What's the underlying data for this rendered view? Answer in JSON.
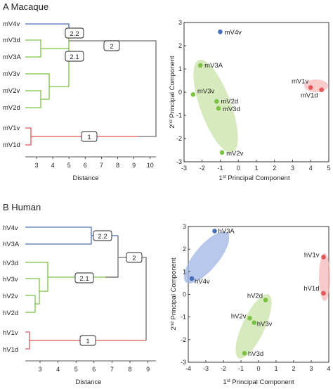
{
  "panel_a": {
    "title": "A Macaque",
    "dendrogram": {
      "leaves": [
        "mV4v",
        "mV3d",
        "mV3A",
        "mV3v",
        "mV2v",
        "mV2d",
        "mV1v",
        "mV1d"
      ],
      "node_labels": [
        "2.2",
        "2.1",
        "2",
        "1"
      ],
      "xlabel": "Distance",
      "xticks": [
        "3",
        "4",
        "5",
        "6",
        "7",
        "8",
        "9",
        "10"
      ],
      "colors": {
        "blue": "#4a6fba",
        "green": "#7cc242",
        "red": "#e0575b",
        "gray": "#6d6e71"
      }
    },
    "pca": {
      "xlabel_pre": "1",
      "xlabel_sup": "st",
      "xlabel_post": " Principal Component",
      "ylabel_pre": "2",
      "ylabel_sup": "nd",
      "ylabel_post": " Principal Component",
      "xticks": [
        "-3",
        "-2",
        "-1",
        "0",
        "1",
        "2",
        "3",
        "4",
        "5"
      ],
      "yticks": [
        "3",
        "2",
        "1",
        "0",
        "-1",
        "-2",
        "-3"
      ]
    }
  },
  "panel_b": {
    "title": "B Human",
    "dendrogram": {
      "leaves": [
        "hV4v",
        "hV3A",
        "hV3d",
        "hV3v",
        "hV2v",
        "hV2d",
        "hV1v",
        "hV1d"
      ],
      "node_labels": [
        "2.2",
        "2.1",
        "2",
        "1"
      ],
      "xlabel": "Distance",
      "xticks": [
        "3",
        "4",
        "5",
        "6",
        "7",
        "8",
        "9"
      ]
    },
    "pca": {
      "xlabel_pre": "1",
      "xlabel_sup": "st",
      "xlabel_post": " Principal Component",
      "ylabel_pre": "2",
      "ylabel_sup": "nd",
      "ylabel_post": " Principal Component",
      "xticks": [
        "-4",
        "-3",
        "-2",
        "-1",
        "0",
        "1",
        "2",
        "3",
        "4"
      ],
      "yticks": [
        "3",
        "2",
        "1",
        "0",
        "-1",
        "-2",
        "-3"
      ]
    }
  },
  "chart_data": [
    {
      "type": "scatter",
      "title": "",
      "xlabel": "1st Principal Component",
      "ylabel": "2nd Principal Component",
      "xlim": [
        -3,
        5
      ],
      "ylim": [
        -3,
        3
      ],
      "series": [
        {
          "name": "",
          "color": "#4a6fba",
          "points": [
            {
              "label": "mV4v",
              "x": -1.0,
              "y": 2.6
            }
          ]
        },
        {
          "name": "",
          "color": "#7cc242",
          "points": [
            {
              "label": "mV3A",
              "x": -2.1,
              "y": 1.15
            },
            {
              "label": "mV3v",
              "x": -2.5,
              "y": -0.1
            },
            {
              "label": "mV2d",
              "x": -1.2,
              "y": -0.4
            },
            {
              "label": "mV3d",
              "x": -1.1,
              "y": -0.7
            },
            {
              "label": "mV2v",
              "x": -0.9,
              "y": -2.6
            }
          ]
        },
        {
          "name": "",
          "color": "#e0575b",
          "points": [
            {
              "label": "mV1v",
              "x": 4.0,
              "y": 0.2
            },
            {
              "label": "mV1d",
              "x": 4.6,
              "y": 0.1
            }
          ]
        }
      ]
    },
    {
      "type": "scatter",
      "title": "",
      "xlabel": "1st Principal Component",
      "ylabel": "2nd Principal Component",
      "xlim": [
        -4,
        4
      ],
      "ylim": [
        -3,
        3
      ],
      "series": [
        {
          "name": "",
          "color": "#4a6fba",
          "points": [
            {
              "label": "hV3A",
              "x": -2.5,
              "y": 2.8
            },
            {
              "label": "hV4v",
              "x": -3.8,
              "y": 0.7
            }
          ]
        },
        {
          "name": "",
          "color": "#7cc242",
          "points": [
            {
              "label": "hV2d",
              "x": 0.4,
              "y": -0.25
            },
            {
              "label": "hV2v",
              "x": -0.5,
              "y": -1.05
            },
            {
              "label": "hV3v",
              "x": -0.25,
              "y": -1.25
            },
            {
              "label": "hV3d",
              "x": -0.8,
              "y": -2.6
            }
          ]
        },
        {
          "name": "",
          "color": "#e0575b",
          "points": [
            {
              "label": "hV1v",
              "x": 3.7,
              "y": 1.65
            },
            {
              "label": "hV1d",
              "x": 3.7,
              "y": 0.05
            }
          ]
        }
      ]
    }
  ]
}
